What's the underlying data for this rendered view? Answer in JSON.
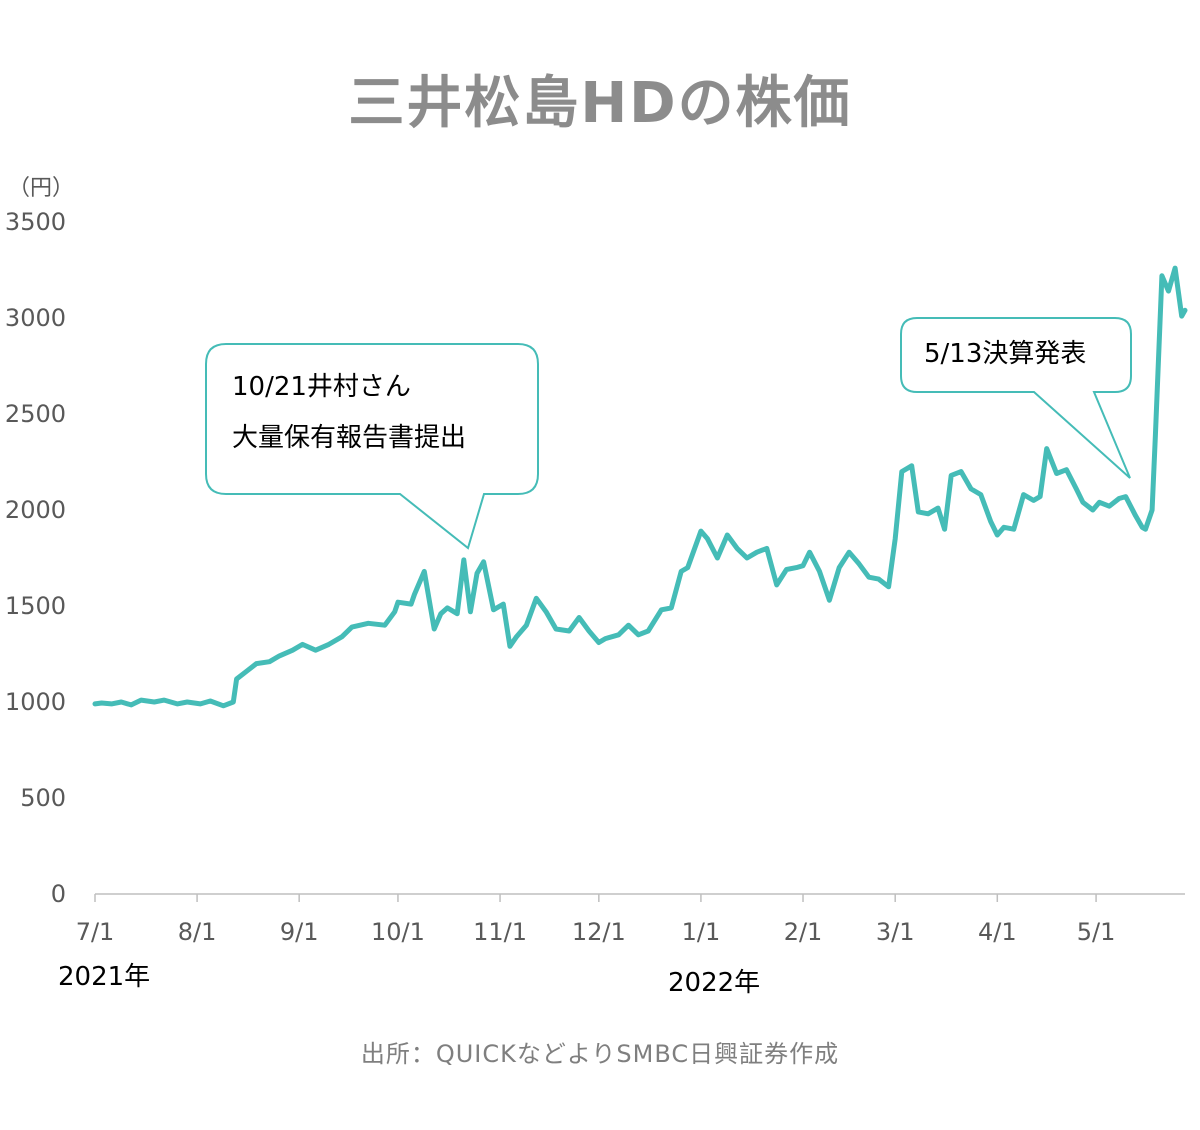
{
  "header": {
    "title": "三井松島HDの株価"
  },
  "footer": {
    "source": "出所：QUICKなどよりSMBC日興証券作成"
  },
  "chart_data": {
    "type": "line",
    "unit_label": "（円）",
    "ylim": [
      0,
      3500
    ],
    "yticks": [
      "0",
      "500",
      "1000",
      "1500",
      "2000",
      "2500",
      "3000",
      "3500"
    ],
    "xtick_labels": [
      "7/1",
      "8/1",
      "9/1",
      "10/1",
      "11/1",
      "12/1",
      "1/1",
      "2/1",
      "3/1",
      "4/1",
      "5/1"
    ],
    "xtick_dates": [
      "2021-07-01",
      "2021-08-01",
      "2021-09-01",
      "2021-10-01",
      "2021-11-01",
      "2021-12-01",
      "2022-01-01",
      "2022-02-01",
      "2022-03-01",
      "2022-04-01",
      "2022-05-01"
    ],
    "year_labels": [
      "2021年",
      "2022年"
    ],
    "line_color": "#45bcb7",
    "series": [
      {
        "x": [
          "2021-07-01",
          "2021-07-03",
          "2021-07-06",
          "2021-07-09",
          "2021-07-12",
          "2021-07-15",
          "2021-07-19",
          "2021-07-22",
          "2021-07-26",
          "2021-07-29",
          "2021-08-02",
          "2021-08-05",
          "2021-08-09",
          "2021-08-12",
          "2021-08-13",
          "2021-08-16",
          "2021-08-19",
          "2021-08-23",
          "2021-08-26",
          "2021-08-30",
          "2021-09-02",
          "2021-09-06",
          "2021-09-10",
          "2021-09-14",
          "2021-09-17",
          "2021-09-22",
          "2021-09-27",
          "2021-09-30",
          "2021-10-01",
          "2021-10-05",
          "2021-10-06",
          "2021-10-09",
          "2021-10-12",
          "2021-10-14",
          "2021-10-16",
          "2021-10-19",
          "2021-10-21",
          "2021-10-23",
          "2021-10-25",
          "2021-10-27",
          "2021-10-30",
          "2021-11-02",
          "2021-11-04",
          "2021-11-06",
          "2021-11-09",
          "2021-11-12",
          "2021-11-15",
          "2021-11-18",
          "2021-11-22",
          "2021-11-25",
          "2021-11-28",
          "2021-12-01",
          "2021-12-03",
          "2021-12-07",
          "2021-12-10",
          "2021-12-13",
          "2021-12-16",
          "2021-12-20",
          "2021-12-23",
          "2021-12-26",
          "2021-12-28",
          "2022-01-01",
          "2022-01-03",
          "2022-01-06",
          "2022-01-09",
          "2022-01-12",
          "2022-01-15",
          "2022-01-18",
          "2022-01-21",
          "2022-01-24",
          "2022-01-27",
          "2022-01-30",
          "2022-02-01",
          "2022-02-03",
          "2022-02-06",
          "2022-02-09",
          "2022-02-12",
          "2022-02-15",
          "2022-02-18",
          "2022-02-21",
          "2022-02-24",
          "2022-02-27",
          "2022-03-01",
          "2022-03-03",
          "2022-03-06",
          "2022-03-08",
          "2022-03-11",
          "2022-03-14",
          "2022-03-16",
          "2022-03-18",
          "2022-03-21",
          "2022-03-24",
          "2022-03-27",
          "2022-03-30",
          "2022-04-01",
          "2022-04-03",
          "2022-04-06",
          "2022-04-09",
          "2022-04-12",
          "2022-04-14",
          "2022-04-16",
          "2022-04-19",
          "2022-04-22",
          "2022-04-25",
          "2022-04-27",
          "2022-04-30",
          "2022-05-02",
          "2022-05-05",
          "2022-05-08",
          "2022-05-10",
          "2022-05-13",
          "2022-05-15",
          "2022-05-16",
          "2022-05-18",
          "2022-05-19",
          "2022-05-21",
          "2022-05-23",
          "2022-05-25",
          "2022-05-27",
          "2022-05-28"
        ],
        "y": [
          990,
          995,
          990,
          1000,
          985,
          1010,
          1000,
          1010,
          990,
          1000,
          990,
          1005,
          980,
          1000,
          1120,
          1160,
          1200,
          1210,
          1240,
          1270,
          1300,
          1270,
          1300,
          1340,
          1390,
          1410,
          1400,
          1470,
          1520,
          1510,
          1560,
          1680,
          1380,
          1460,
          1490,
          1460,
          1740,
          1470,
          1670,
          1730,
          1480,
          1510,
          1290,
          1340,
          1400,
          1540,
          1470,
          1380,
          1370,
          1440,
          1370,
          1310,
          1330,
          1350,
          1400,
          1350,
          1370,
          1480,
          1490,
          1680,
          1700,
          1890,
          1850,
          1750,
          1870,
          1800,
          1750,
          1780,
          1800,
          1610,
          1690,
          1700,
          1710,
          1780,
          1680,
          1530,
          1700,
          1780,
          1720,
          1650,
          1640,
          1600,
          1850,
          2200,
          2230,
          1990,
          1980,
          2010,
          1900,
          2180,
          2200,
          2110,
          2080,
          1940,
          1870,
          1910,
          1900,
          2080,
          2050,
          2070,
          2320,
          2190,
          2210,
          2110,
          2040,
          2000,
          2040,
          2020,
          2060,
          2070,
          1970,
          1910,
          1900,
          2000,
          2390,
          3220,
          3140,
          3260,
          3010,
          3040
        ]
      }
    ],
    "annotations": [
      {
        "date": "2021-10-21",
        "lines": [
          "10/21井村さん",
          "大量保有報告書提出"
        ]
      },
      {
        "date": "2022-05-13",
        "lines": [
          "5/13決算発表"
        ]
      }
    ]
  }
}
